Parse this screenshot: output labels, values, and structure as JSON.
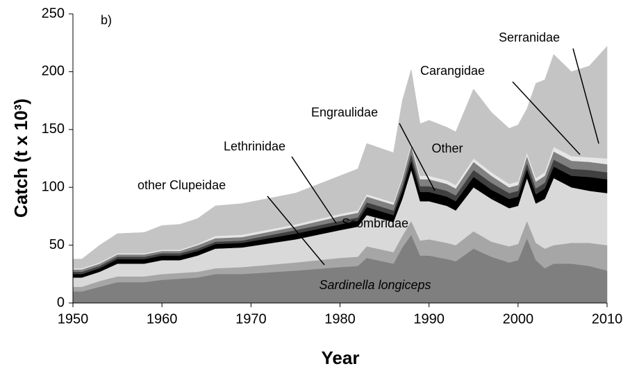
{
  "chart_data": {
    "type": "stacked_area",
    "panel_label": "b)",
    "x_label": "Year",
    "y_label": "Catch (t x 10³)",
    "x": [
      1950,
      1951,
      1953,
      1955,
      1958,
      1960,
      1962,
      1964,
      1966,
      1969,
      1975,
      1980,
      1982,
      1983,
      1986,
      1987,
      1988,
      1989,
      1990,
      1992,
      1993,
      1995,
      1997,
      1999,
      2000,
      2001,
      2002,
      2003,
      2004,
      2006,
      2008,
      2010
    ],
    "series": [
      {
        "name": "Sardinella longiceps",
        "color": "#7f7f7f",
        "values": [
          10,
          10,
          14,
          18,
          18,
          20,
          21,
          22,
          25,
          25,
          28,
          31,
          32,
          39,
          34,
          48,
          59,
          41,
          41,
          38,
          36,
          47,
          40,
          35,
          37,
          56,
          37,
          30,
          34,
          34,
          32,
          28
        ]
      },
      {
        "name": "other Clupeidae",
        "color": "#a6a6a6",
        "values": [
          4,
          4,
          5,
          5,
          5,
          5,
          5,
          5,
          5,
          6,
          7,
          8,
          8,
          10,
          10,
          10,
          12,
          13,
          14,
          14,
          14,
          15,
          13,
          14,
          14,
          15,
          15,
          17,
          16,
          18,
          20,
          22
        ]
      },
      {
        "name": "Scombridae",
        "color": "#d9d9d9",
        "values": [
          8,
          8,
          8,
          11,
          11,
          12,
          11,
          14,
          17,
          17,
          20,
          24,
          26,
          27,
          26,
          32,
          44,
          34,
          33,
          32,
          30,
          38,
          37,
          33,
          33,
          37,
          34,
          43,
          58,
          48,
          45,
          45
        ]
      },
      {
        "name": "Lethrinidae",
        "color": "#000000",
        "values": [
          3,
          3,
          3,
          4,
          4,
          4,
          4,
          4,
          4,
          4,
          5,
          5,
          5,
          7,
          6,
          7,
          8,
          8,
          8,
          8,
          8,
          9,
          8,
          8,
          8,
          8,
          8,
          9,
          10,
          10,
          12,
          12
        ]
      },
      {
        "name": "Engraulidae",
        "color": "#404040",
        "values": [
          2,
          2,
          2,
          2,
          2,
          2,
          2,
          2,
          2,
          2,
          3,
          3,
          3,
          4,
          4,
          4,
          6,
          5,
          5,
          5,
          5,
          6,
          6,
          5,
          5,
          5,
          5,
          5,
          6,
          6,
          6,
          6
        ]
      },
      {
        "name": "Carangidae",
        "color": "#808080",
        "values": [
          2,
          2,
          2,
          2,
          2,
          2,
          2,
          3,
          3,
          3,
          3,
          4,
          4,
          5,
          5,
          6,
          7,
          6,
          6,
          6,
          6,
          7,
          6,
          5,
          5,
          6,
          6,
          6,
          7,
          7,
          7,
          7
        ]
      },
      {
        "name": "Serranidae",
        "color": "#e6e6e6",
        "values": [
          1,
          1,
          1,
          1,
          1,
          1,
          1,
          1,
          2,
          2,
          2,
          2,
          2,
          2,
          2,
          2,
          3,
          3,
          3,
          3,
          3,
          3,
          3,
          3,
          3,
          3,
          3,
          3,
          4,
          4,
          4,
          5
        ]
      },
      {
        "name": "Other",
        "color": "#c4c4c4",
        "values": [
          8,
          8,
          15,
          17,
          18,
          21,
          22,
          22,
          26,
          27,
          27,
          33,
          36,
          44,
          43,
          66,
          63,
          45,
          48,
          46,
          46,
          60,
          52,
          48,
          49,
          38,
          82,
          80,
          80,
          73,
          79,
          97
        ]
      }
    ],
    "xlim": [
      1950,
      2010
    ],
    "ylim": [
      0,
      250
    ],
    "xticks": [
      1950,
      1960,
      1970,
      1980,
      1990,
      2000,
      2010
    ],
    "yticks": [
      0,
      50,
      100,
      150,
      200,
      250
    ]
  }
}
